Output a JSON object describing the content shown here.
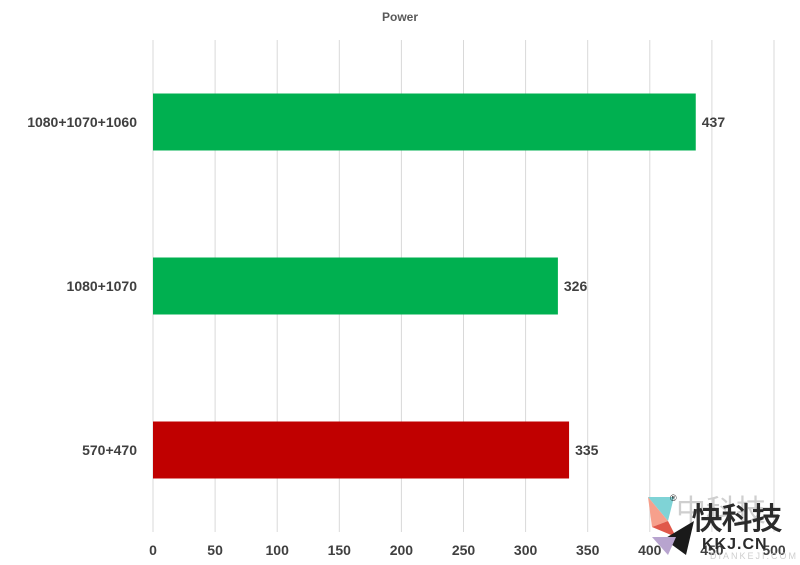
{
  "chart_data": {
    "type": "bar",
    "orientation": "horizontal",
    "title": "Power",
    "xlabel": "",
    "ylabel": "",
    "categories": [
      "1080+1070+1060",
      "1080+1070",
      "570+470"
    ],
    "values": [
      437,
      326,
      335
    ],
    "bar_colors": [
      "#00b050",
      "#00b050",
      "#c00000"
    ],
    "xlim": [
      0,
      500
    ],
    "x_ticks": [
      0,
      50,
      100,
      150,
      200,
      250,
      300,
      350,
      400,
      450,
      500
    ],
    "grid": true,
    "data_labels": true,
    "legend": "none"
  },
  "watermark": {
    "logo_text_cn": "快科技",
    "logo_text_en": "KKJ.CN",
    "ghost_text_cn": "中科技",
    "ghost_text_en": "DIANKEJI.COM",
    "registered_mark": "®",
    "icon": "swallow-bird-logo"
  }
}
